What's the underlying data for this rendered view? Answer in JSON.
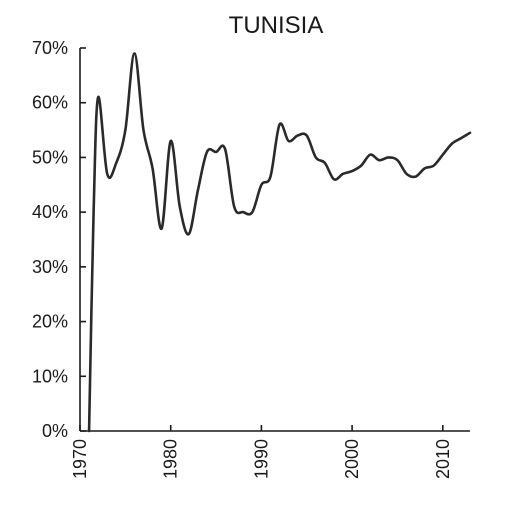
{
  "chart_data": {
    "type": "line",
    "title": "TUNISIA",
    "xlabel": "",
    "ylabel": "",
    "xlim": [
      1970,
      2013
    ],
    "ylim": [
      0,
      70
    ],
    "grid": false,
    "legend": "none",
    "x_ticks": [
      1970,
      1980,
      1990,
      2000,
      2010
    ],
    "x_tick_labels": [
      "1970",
      "1980",
      "1990",
      "2000",
      "2010"
    ],
    "y_ticks": [
      0,
      10,
      20,
      30,
      40,
      50,
      60,
      70
    ],
    "y_tick_labels": [
      "0%",
      "10%",
      "20%",
      "30%",
      "40%",
      "50%",
      "60%",
      "70%"
    ],
    "line_color": "#2a2a2a",
    "series": [
      {
        "x": [
          1971,
          1971.5,
          1972,
          1973,
          1974,
          1975,
          1976,
          1977,
          1978,
          1979,
          1980,
          1981,
          1982,
          1983,
          1984,
          1985,
          1986,
          1987,
          1988,
          1989,
          1990,
          1991,
          1992,
          1993,
          1994,
          1995,
          1996,
          1997,
          1998,
          1999,
          2000,
          2001,
          2002,
          2003,
          2004,
          2005,
          2006,
          2007,
          2008,
          2009,
          2010,
          2011,
          2012,
          2013
        ],
        "values": [
          0,
          40,
          61,
          47,
          49,
          55,
          69,
          55,
          48,
          37,
          53,
          41,
          36,
          44,
          51,
          51,
          51.5,
          41,
          40,
          40,
          45,
          46.5,
          56,
          53,
          54,
          54,
          50,
          49,
          46,
          47,
          47.5,
          48.5,
          50.5,
          49.5,
          50,
          49.5,
          47,
          46.5,
          48,
          48.5,
          50.5,
          52.5,
          53.5,
          54.5
        ]
      }
    ]
  }
}
